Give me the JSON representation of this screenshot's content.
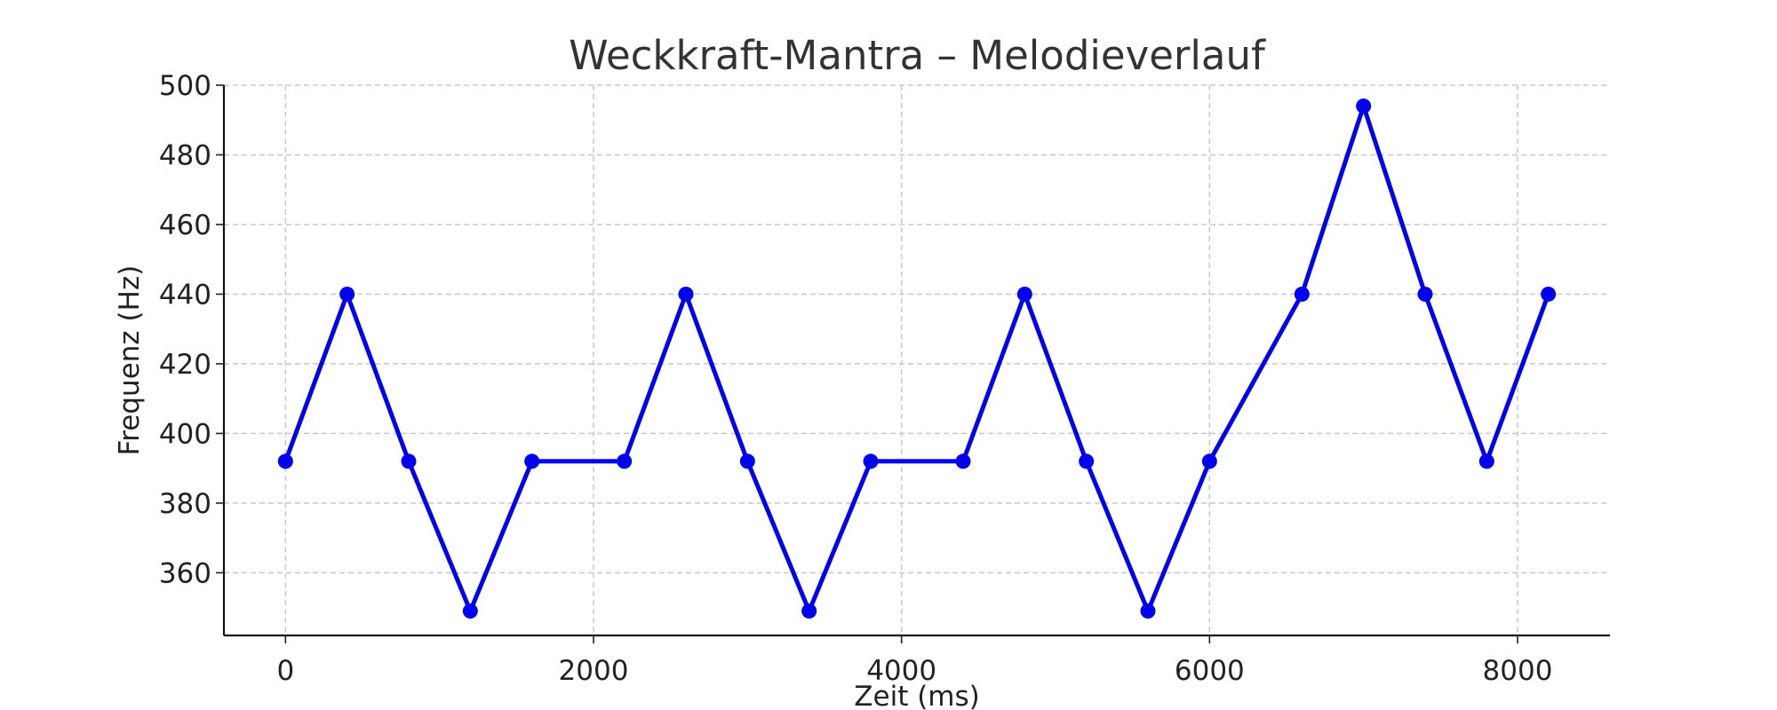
{
  "chart_data": {
    "type": "line",
    "title": "Weckkraft-Mantra – Melodieverlauf",
    "xlabel": "Zeit (ms)",
    "ylabel": "Frequenz (Hz)",
    "xlim": [
      -400,
      8600
    ],
    "ylim": [
      342,
      500
    ],
    "xticks": [
      0,
      2000,
      4000,
      6000,
      8000
    ],
    "yticks": [
      360,
      380,
      400,
      420,
      440,
      460,
      480,
      500
    ],
    "grid": true,
    "series": [
      {
        "color": "#0000ee",
        "marker": "circle",
        "x": [
          0,
          400,
          800,
          1200,
          1600,
          2200,
          2600,
          3000,
          3400,
          3800,
          4400,
          4800,
          5200,
          5600,
          6000,
          6600,
          7000,
          7400,
          7800,
          8200
        ],
        "y": [
          392,
          440,
          392,
          349,
          392,
          392,
          440,
          392,
          349,
          392,
          392,
          440,
          392,
          349,
          392,
          440,
          494,
          440,
          392,
          440
        ]
      }
    ]
  }
}
